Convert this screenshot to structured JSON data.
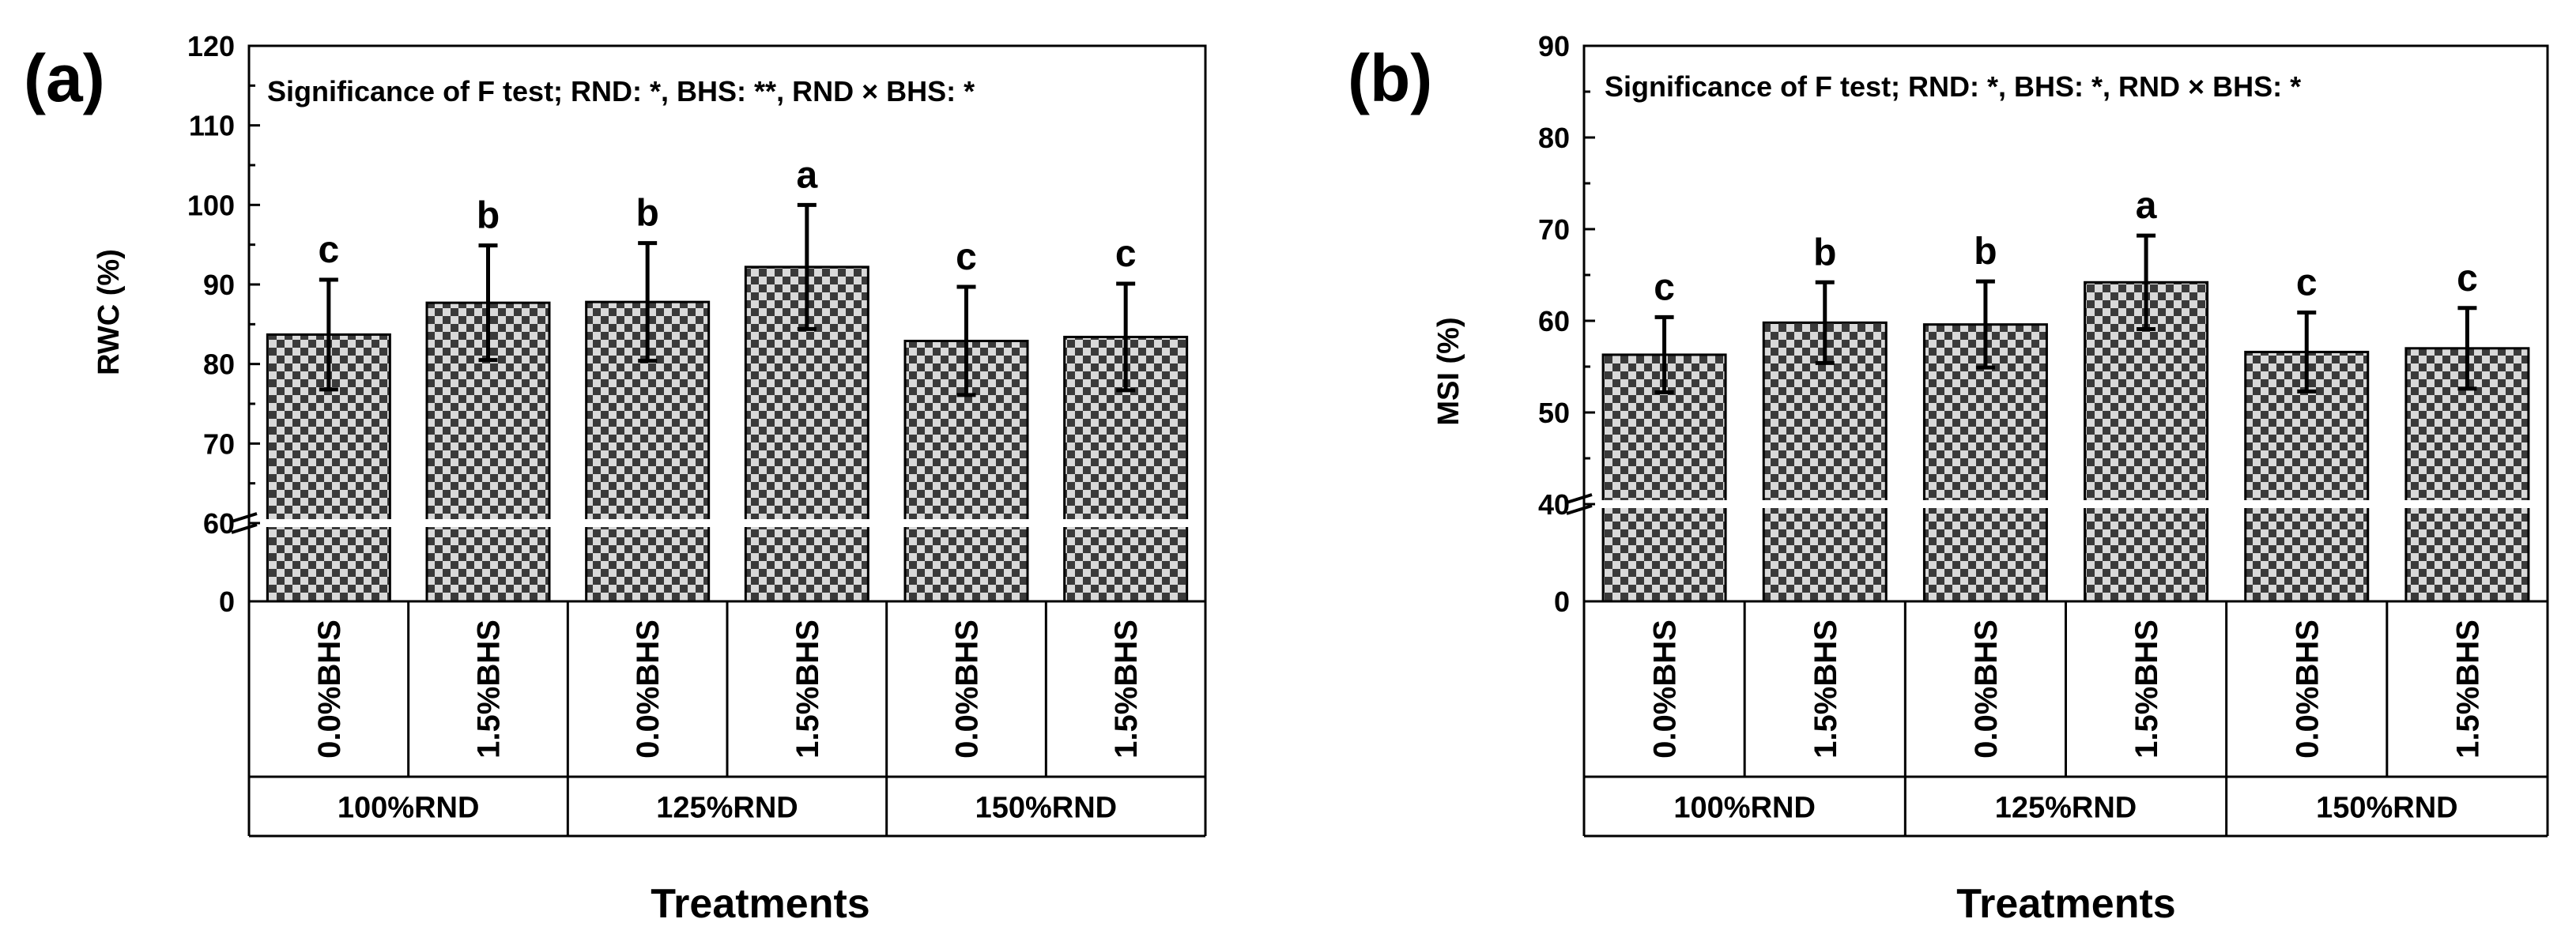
{
  "colors": {
    "ink": "#000000",
    "bar_light": "#d9d9d9",
    "bar_dark": "#3a3a3a",
    "background": "#ffffff"
  },
  "chart_data": [
    {
      "type": "bar",
      "panel": "(a)",
      "annotation": "Significance of F test; RND: *, BHS: **, RND × BHS: *",
      "ylabel": "RWC (%)",
      "xlabel": "Treatments",
      "categories": [
        "0.0%BHS",
        "1.5%BHS",
        "0.0%BHS",
        "1.5%BHS",
        "0.0%BHS",
        "1.5%BHS"
      ],
      "groups": [
        "100%RND",
        "125%RND",
        "150%RND"
      ],
      "values": [
        83.7,
        87.7,
        87.8,
        92.2,
        82.9,
        83.4
      ],
      "errors": [
        6.9,
        7.2,
        7.4,
        7.8,
        6.8,
        6.7
      ],
      "letters": [
        "c",
        "b",
        "b",
        "a",
        "c",
        "c"
      ],
      "yticks": [
        "0",
        "60",
        "70",
        "80",
        "90",
        "100",
        "110",
        "120"
      ],
      "ylim": [
        0,
        120
      ],
      "axis_break": 60,
      "grid": false
    },
    {
      "type": "bar",
      "panel": "(b)",
      "annotation": "Significance of F test; RND: *, BHS: *, RND × BHS: *",
      "ylabel": "MSI (%)",
      "xlabel": "Treatments",
      "categories": [
        "0.0%BHS",
        "1.5%BHS",
        "0.0%BHS",
        "1.5%BHS",
        "0.0%BHS",
        "1.5%BHS"
      ],
      "groups": [
        "100%RND",
        "125%RND",
        "150%RND"
      ],
      "values": [
        56.3,
        59.8,
        59.6,
        64.2,
        56.6,
        57.0
      ],
      "errors": [
        4.1,
        4.4,
        4.7,
        5.1,
        4.3,
        4.4
      ],
      "letters": [
        "c",
        "b",
        "b",
        "a",
        "c",
        "c"
      ],
      "yticks": [
        "0",
        "40",
        "50",
        "60",
        "70",
        "80",
        "90"
      ],
      "ylim": [
        0,
        90
      ],
      "axis_break": 40,
      "grid": false
    }
  ]
}
